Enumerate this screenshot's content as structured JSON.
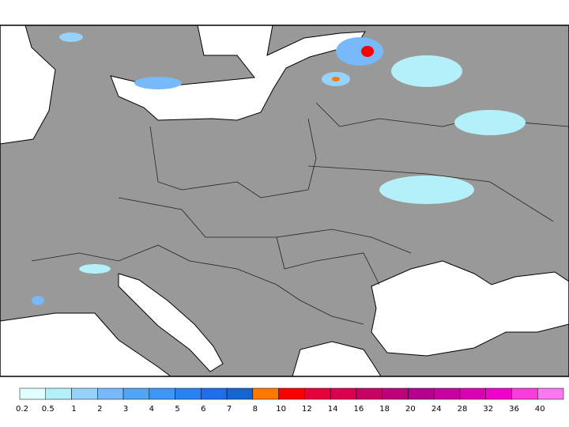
{
  "legend": {
    "items": [
      {
        "label": "0.2",
        "color": "#e0ffff"
      },
      {
        "label": "0.5",
        "color": "#b4f0fa"
      },
      {
        "label": "1",
        "color": "#96d2fa"
      },
      {
        "label": "2",
        "color": "#78b9fa"
      },
      {
        "label": "3",
        "color": "#50a5f5"
      },
      {
        "label": "4",
        "color": "#3c97f5"
      },
      {
        "label": "5",
        "color": "#2882f0"
      },
      {
        "label": "6",
        "color": "#1e6eeb"
      },
      {
        "label": "7",
        "color": "#1464d2"
      },
      {
        "label": "8",
        "color": "#ff7800"
      },
      {
        "label": "10",
        "color": "#fa0000"
      },
      {
        "label": "12",
        "color": "#e6003c"
      },
      {
        "label": "14",
        "color": "#dc0050"
      },
      {
        "label": "16",
        "color": "#c80064"
      },
      {
        "label": "18",
        "color": "#be0078"
      },
      {
        "label": "20",
        "color": "#b4008c"
      },
      {
        "label": "24",
        "color": "#c800a0"
      },
      {
        "label": "28",
        "color": "#dc00b4"
      },
      {
        "label": "32",
        "color": "#f000c8"
      },
      {
        "label": "36",
        "color": "#fa3cdc"
      },
      {
        "label": "40",
        "color": "#fa78f0"
      }
    ]
  }
}
